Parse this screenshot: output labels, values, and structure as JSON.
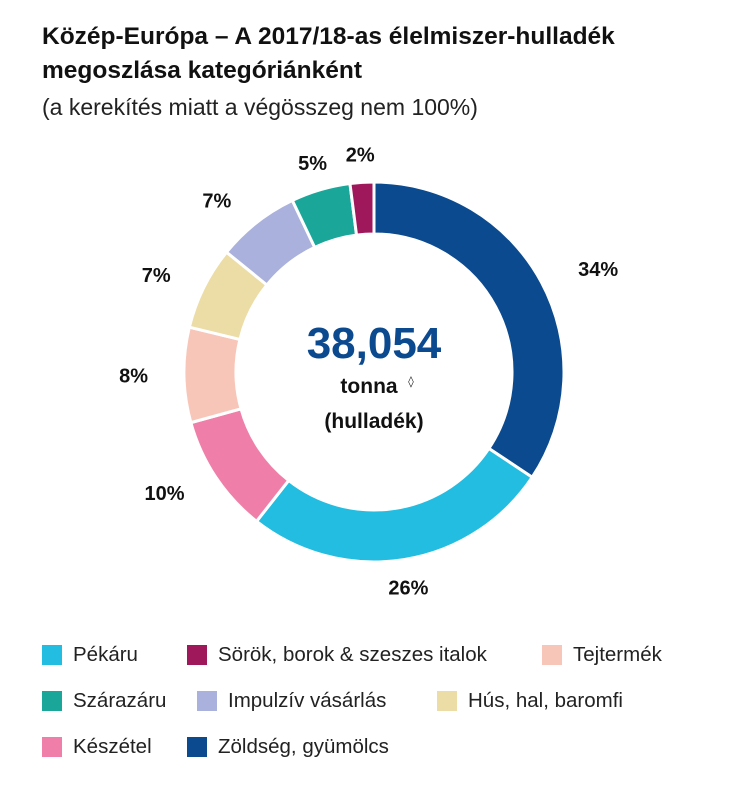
{
  "chart_data": {
    "type": "donut",
    "title": "Közép-Európa – A 2017/18-as élelmiszer-hulladék megoszlása kategóriánként",
    "subtitle": "(a kerekítés miatt a végösszeg nem 100%)",
    "center": {
      "value": "38,054",
      "unit": "tonna",
      "unit_mark": "◊",
      "note": "(hulladék)"
    },
    "slices": [
      {
        "name": "Zöldség, gyümölcs",
        "value": 34,
        "label": "34%",
        "color": "#0b4a8f"
      },
      {
        "name": "Pékáru",
        "value": 26,
        "label": "26%",
        "color": "#22bde0"
      },
      {
        "name": "Készétel",
        "value": 10,
        "label": "10%",
        "color": "#ef7fa8"
      },
      {
        "name": "Tejtermék",
        "value": 8,
        "label": "8%",
        "color": "#f7c6b8"
      },
      {
        "name": "Hús, hal, baromfi",
        "value": 7,
        "label": "7%",
        "color": "#ecdca6"
      },
      {
        "name": "Impulzív vásárlás",
        "value": 7,
        "label": "7%",
        "color": "#a9b1dc"
      },
      {
        "name": "Szárazáru",
        "value": 5,
        "label": "5%",
        "color": "#1aa79a"
      },
      {
        "name": "Sörök, borok & szeszes italok",
        "value": 2,
        "label": "2%",
        "color": "#a0185c"
      }
    ],
    "legend": [
      [
        "Pékáru",
        "Sörök, borok & szeszes italok",
        "Tejtermék"
      ],
      [
        "Szárazáru",
        "Impulzív vásárlás",
        "Hús, hal, baromfi"
      ],
      [
        "Készétel",
        "Zöldség, gyümölcs"
      ]
    ],
    "colors": {
      "center_value": "#0b4a8f",
      "text": "#111111"
    }
  }
}
